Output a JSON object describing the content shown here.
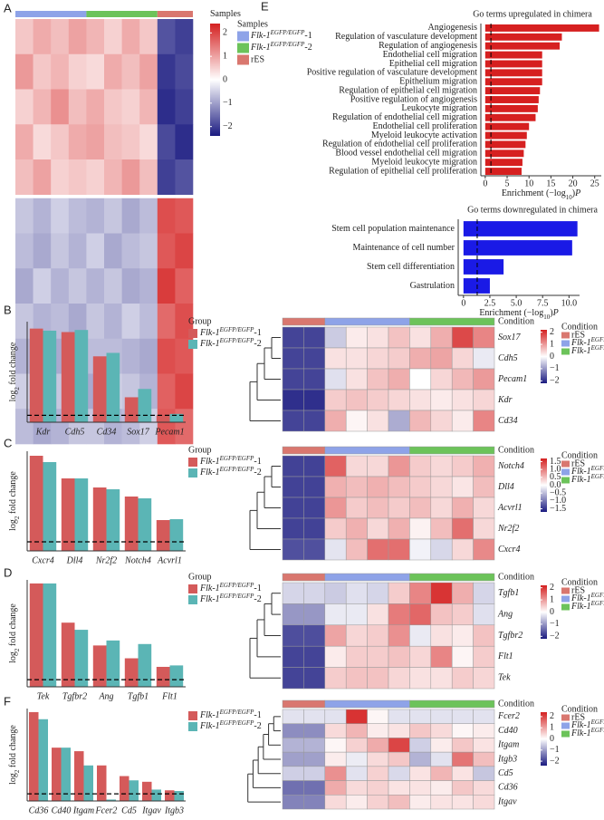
{
  "panel_labels": [
    "A",
    "B",
    "C",
    "D",
    "E",
    "F"
  ],
  "chart_data": [
    {
      "type": "heatmap",
      "annotation_title": "Samples",
      "legend_title": "Samples",
      "groups": [
        {
          "name": [
            "Flk-1",
            "EGFP/EGFP",
            "-1"
          ],
          "color": "#8ea3e8",
          "count": 4
        },
        {
          "name": [
            "Flk-1",
            "EGFP/EGFP",
            "-2"
          ],
          "color": "#6cc35a",
          "count": 4
        },
        {
          "name": "rES",
          "color": "#d9776f",
          "count": 2
        }
      ],
      "colormap": [
        "#1a1a80",
        "#ffffff",
        "#d42020"
      ],
      "zlim": [
        -2.4,
        2.4
      ],
      "zticks": [
        2,
        1,
        0,
        {
          "value": -1,
          "label": "−1"
        },
        {
          "value": -2,
          "label": "−2"
        }
      ],
      "values": [
        [
          0.6,
          0.9,
          0.7,
          1.0,
          0.8,
          0.5,
          0.9,
          0.6,
          -1.8,
          -2.0
        ],
        [
          1.1,
          0.6,
          0.8,
          0.5,
          0.4,
          0.9,
          0.7,
          1.0,
          -2.1,
          -1.9
        ],
        [
          0.5,
          0.8,
          1.2,
          0.7,
          0.9,
          0.6,
          0.5,
          0.8,
          -2.2,
          -2.0
        ],
        [
          0.9,
          0.4,
          0.6,
          0.9,
          1.0,
          0.7,
          0.6,
          0.4,
          -1.9,
          -2.2
        ],
        [
          0.7,
          1.0,
          0.5,
          0.6,
          0.5,
          0.8,
          1.1,
          0.7,
          -2.0,
          -1.8
        ],
        [
          -0.6,
          -0.8,
          -0.5,
          -0.7,
          -0.8,
          -0.6,
          -0.9,
          -0.7,
          1.9,
          1.8
        ],
        [
          -0.7,
          -0.9,
          -0.6,
          -0.8,
          -0.5,
          -0.9,
          -0.7,
          -0.6,
          1.8,
          2.0
        ],
        [
          -0.9,
          -0.5,
          -0.8,
          -0.6,
          -0.8,
          -0.6,
          -0.9,
          -0.8,
          2.1,
          1.7
        ],
        [
          -0.6,
          -0.8,
          -0.7,
          -0.9,
          -0.6,
          -0.8,
          -0.5,
          -0.7,
          1.6,
          1.9
        ],
        [
          -0.8,
          -0.6,
          -0.9,
          -0.5,
          -0.7,
          -0.7,
          -0.8,
          -0.9,
          1.9,
          1.8
        ],
        [
          -0.5,
          -0.7,
          -0.6,
          -0.7,
          -0.9,
          -0.5,
          -0.6,
          -0.8,
          1.7,
          2.0
        ],
        [
          -0.7,
          -0.9,
          -0.8,
          -0.6,
          -0.6,
          -0.8,
          -0.7,
          -0.5,
          1.8,
          1.6
        ]
      ]
    },
    {
      "type": "hbar",
      "title": "Go terms upregulated in chimera",
      "color": "#d62020",
      "categories": [
        "Angiogenesis",
        "Regulation of vasculature development",
        "Regulation of angiogenesis",
        "Endothelial cell migration",
        "Epithelial cell migration",
        "Positive regulation of vasculature development",
        "Epithelium migration",
        "Regulation of epithelial cell migration",
        "Positive regulation of angiogenesis",
        "Leukocyte migration",
        "Regulation of endothelial cell migration",
        "Endothelial cell proliferation",
        "Myeloid leukocyte activation",
        "Regulation of endothelial cell proliferation",
        "Blood vessel endothelial cell migration",
        "Myeloid leukocyte migration",
        "Regulation of epithelial cell proliferation"
      ],
      "values": [
        26,
        17.5,
        17,
        13,
        13,
        13,
        13,
        12.5,
        12.2,
        12,
        11.5,
        10,
        9.5,
        9.2,
        8.8,
        8.5,
        8.3
      ],
      "xlim": [
        -1,
        26.5
      ],
      "xticks": [
        0,
        5,
        10,
        15,
        20,
        25
      ],
      "reference_line": 1.3,
      "x_label": [
        "Enrichment (−log",
        "10",
        ")",
        "P"
      ]
    },
    {
      "type": "hbar",
      "title": "Go terms downregulated in chimera",
      "color": "#1a1ae6",
      "categories": [
        "Stem cell population maintenance",
        "Maintenance of cell number",
        "Stem cell differentiation",
        "Gastrulation"
      ],
      "values": [
        10.8,
        10.3,
        3.8,
        2.5
      ],
      "xlim": [
        -0.5,
        11
      ],
      "xticks": [
        0,
        2.5,
        {
          "value": 5,
          "label": "5.0"
        },
        7.5,
        {
          "value": 10,
          "label": "10.0"
        }
      ],
      "reference_line": 1.3,
      "x_label": [
        "Enrichment (−log",
        "10",
        ")",
        "P"
      ]
    },
    {
      "type": "bar",
      "legend_title": "Group",
      "y_label": [
        "log",
        "2",
        " fold change"
      ],
      "categories": [
        "Kdr",
        "Cdh5",
        "Cd34",
        "Sox17",
        "Pecam1"
      ],
      "ylim": [
        0,
        14.5
      ],
      "reference_line": 1,
      "series": [
        {
          "name": [
            "Flk-1",
            "EGFP/EGFP",
            "-1"
          ],
          "color": "#d45a5a",
          "values": [
            13.5,
            13,
            9.5,
            3.6,
            1.0
          ]
        },
        {
          "name": [
            "Flk-1",
            "EGFP/EGFP",
            "-2"
          ],
          "color": "#5bb5b5",
          "values": [
            13.2,
            13.3,
            10,
            4.8,
            1.2
          ]
        }
      ]
    },
    {
      "type": "heatmap",
      "annotation_title": "Condition",
      "legend_title": "Condition",
      "groups": [
        {
          "name": "rES",
          "color": "#d9776f",
          "count": 2
        },
        {
          "name": [
            "Flk-1",
            "EGFP/EGFP",
            "-1"
          ],
          "color": "#8ea3e8",
          "count": 4
        },
        {
          "name": [
            "Flk-1",
            "EGFP/EGFP",
            "-2"
          ],
          "color": "#6cc35a",
          "count": 4
        }
      ],
      "colormap": [
        "#1a1a80",
        "#ffffff",
        "#d42020"
      ],
      "zlim": [
        -2.2,
        2.2
      ],
      "zticks": [
        2,
        1,
        0,
        {
          "value": -1,
          "label": "−1"
        },
        {
          "value": -2,
          "label": "−2"
        }
      ],
      "rows": [
        "Sox17",
        "Cdh5",
        "Pecam1",
        "Kdr",
        "Cd34"
      ],
      "values": [
        [
          -1.8,
          -1.8,
          -0.5,
          0.2,
          0.3,
          0.6,
          0.3,
          0.8,
          1.8,
          1.2
        ],
        [
          -1.8,
          -1.8,
          0.3,
          0.3,
          0.4,
          0.5,
          0.8,
          0.9,
          0.4,
          -0.2
        ],
        [
          -1.8,
          -1.8,
          -0.3,
          0.3,
          0.6,
          0.8,
          0,
          0.4,
          0.7,
          1.0
        ],
        [
          -2,
          -2,
          0.5,
          0.6,
          0.5,
          0.4,
          0.3,
          0.2,
          0.3,
          0.4
        ],
        [
          -1.8,
          -1.8,
          0.8,
          0.1,
          0.3,
          -0.8,
          0.7,
          0.4,
          0.2,
          1.2
        ]
      ]
    },
    {
      "type": "bar",
      "legend_title": "Group",
      "y_label": [
        "log",
        "2",
        " fold change"
      ],
      "categories": [
        "Cxcr4",
        "Dll4",
        "Nr2f2",
        "Notch4",
        "Acvrl1"
      ],
      "ylim": [
        0,
        11
      ],
      "reference_line": 1,
      "series": [
        {
          "name": [
            "Flk-1",
            "EGFP/EGFP",
            "-1"
          ],
          "color": "#d45a5a",
          "values": [
            10.5,
            8,
            7,
            6,
            3.4
          ]
        },
        {
          "name": [
            "Flk-1",
            "EGFP/EGFP",
            "-2"
          ],
          "color": "#5bb5b5",
          "values": [
            9.8,
            8,
            6.8,
            5.8,
            3.5
          ]
        }
      ]
    },
    {
      "type": "heatmap",
      "annotation_title": "Condition",
      "legend_title": "Condition",
      "groups": [
        {
          "name": "rES",
          "color": "#d9776f",
          "count": 2
        },
        {
          "name": [
            "Flk-1",
            "EGFP/EGFP",
            "-1"
          ],
          "color": "#8ea3e8",
          "count": 4
        },
        {
          "name": [
            "Flk-1",
            "EGFP/EGFP",
            "-2"
          ],
          "color": "#6cc35a",
          "count": 4
        }
      ],
      "colormap": [
        "#1a1a80",
        "#ffffff",
        "#d42020"
      ],
      "zlim": [
        -1.7,
        1.7
      ],
      "zticks": [
        1.5,
        {
          "value": 1,
          "label": "1.0"
        },
        0.5,
        {
          "value": 0,
          "label": "0.0"
        },
        {
          "value": -0.5,
          "label": "−0.5"
        },
        {
          "value": -1,
          "label": "−1.0"
        },
        {
          "value": -1.5,
          "label": "−1.5"
        }
      ],
      "rows": [
        "Notch4",
        "Dll4",
        "Acvrl1",
        "Nr2f2",
        "Cxcr4"
      ],
      "values": [
        [
          -1.4,
          -1.4,
          1.2,
          0.3,
          0.3,
          0.8,
          0.4,
          0.3,
          0.4,
          0.6
        ],
        [
          -1.4,
          -1.4,
          0.6,
          0.5,
          0.6,
          0.5,
          0.4,
          0.3,
          0.2,
          0.5
        ],
        [
          -1.4,
          -1.4,
          0.8,
          0.4,
          0.5,
          0.4,
          0.5,
          0.3,
          0.6,
          0.3
        ],
        [
          -1.4,
          -1.4,
          0.4,
          0.6,
          0.3,
          0.6,
          0.1,
          0.5,
          1.1,
          0.3
        ],
        [
          -1.3,
          -1.3,
          -0.2,
          0.5,
          1.1,
          1.1,
          -0.1,
          -0.3,
          0.3,
          0.9
        ]
      ]
    },
    {
      "type": "bar",
      "legend_title": "Group",
      "y_label": [
        "log",
        "2",
        " fold change"
      ],
      "categories": [
        "Tek",
        "Tgfbr2",
        "Ang",
        "Tgfb1",
        "Flt1"
      ],
      "ylim": [
        0,
        15
      ],
      "reference_line": 1,
      "series": [
        {
          "name": [
            "Flk-1",
            "EGFP/EGFP",
            "-1"
          ],
          "color": "#d45a5a",
          "values": [
            14.5,
            9,
            5.8,
            4,
            2.8
          ]
        },
        {
          "name": [
            "Flk-1",
            "EGFP/EGFP",
            "-2"
          ],
          "color": "#5bb5b5",
          "values": [
            14.5,
            8,
            6.5,
            6,
            3
          ]
        }
      ]
    },
    {
      "type": "heatmap",
      "annotation_title": "Condition",
      "legend_title": "Condition",
      "groups": [
        {
          "name": "rES",
          "color": "#d9776f",
          "count": 2
        },
        {
          "name": [
            "Flk-1",
            "EGFP/EGFP",
            "-1"
          ],
          "color": "#8ea3e8",
          "count": 4
        },
        {
          "name": [
            "Flk-1",
            "EGFP/EGFP",
            "-2"
          ],
          "color": "#6cc35a",
          "count": 4
        }
      ],
      "colormap": [
        "#1a1a80",
        "#ffffff",
        "#d42020"
      ],
      "zlim": [
        -2.2,
        2.2
      ],
      "zticks": [
        2,
        1,
        0,
        {
          "value": -1,
          "label": "−1"
        },
        {
          "value": -2,
          "label": "−2"
        }
      ],
      "rows": [
        "Tgfb1",
        "Ang",
        "Tgfbr2",
        "Flt1",
        "Tek"
      ],
      "values": [
        [
          -0.4,
          -0.4,
          -0.5,
          -0.3,
          -0.4,
          0.5,
          1.2,
          2,
          0.8,
          -0.4
        ],
        [
          -1,
          -1,
          -0.2,
          -0.2,
          0.3,
          1.3,
          1.5,
          0.6,
          0.5,
          -0.3
        ],
        [
          -1.7,
          -1.7,
          0.9,
          0.4,
          0.5,
          1.1,
          -0.2,
          0.3,
          0.2,
          0.6
        ],
        [
          -1.8,
          -1.8,
          0.2,
          0.5,
          0.5,
          0.6,
          0.4,
          1.2,
          0.1,
          0.5
        ],
        [
          -1.8,
          -1.8,
          0.5,
          0.6,
          0.6,
          0.4,
          0.3,
          0.3,
          0.5,
          0.4
        ]
      ]
    },
    {
      "type": "bar",
      "y_label": [
        "log",
        "2",
        " fold change"
      ],
      "categories": [
        "Cd36",
        "Cd40",
        "Itgam",
        "Fcer2",
        "Cd5",
        "Itgav",
        "Itgb3"
      ],
      "ylim": [
        0,
        13
      ],
      "reference_line": 1,
      "series": [
        {
          "name": [
            "Flk-1",
            "EGFP/EGFP",
            "-1"
          ],
          "color": "#d45a5a",
          "values": [
            12.5,
            7.5,
            7,
            5,
            3.5,
            2.7,
            1.5
          ]
        },
        {
          "name": [
            "Flk-1",
            "EGFP/EGFP",
            "-2"
          ],
          "color": "#5bb5b5",
          "values": [
            11.5,
            7.5,
            5,
            0.2,
            2.9,
            1.6,
            1.4
          ]
        }
      ]
    },
    {
      "type": "heatmap",
      "annotation_title": "Condition",
      "legend_title": "Condition",
      "groups": [
        {
          "name": "rES",
          "color": "#d9776f",
          "count": 2
        },
        {
          "name": [
            "Flk-1",
            "EGFP/EGFP",
            "-1"
          ],
          "color": "#8ea3e8",
          "count": 4
        },
        {
          "name": [
            "Flk-1",
            "EGFP/EGFP",
            "-2"
          ],
          "color": "#6cc35a",
          "count": 4
        }
      ],
      "colormap": [
        "#1a1a80",
        "#ffffff",
        "#d42020"
      ],
      "zlim": [
        -2.4,
        2.4
      ],
      "zticks": [
        2,
        1,
        0,
        {
          "value": -1,
          "label": "−1"
        },
        {
          "value": -2,
          "label": "−2"
        }
      ],
      "rows": [
        "Fcer2",
        "Cd40",
        "Itgam",
        "Itgb3",
        "Cd5",
        "Cd36",
        "Itgav"
      ],
      "values": [
        [
          -0.3,
          -0.3,
          -0.3,
          2.2,
          0.1,
          -0.3,
          -0.3,
          -0.3,
          -0.3,
          -0.3
        ],
        [
          -1.2,
          -1.2,
          0.4,
          0.8,
          0.2,
          0.3,
          0.6,
          0.4,
          0.1,
          0.2
        ],
        [
          -0.8,
          -0.8,
          0.1,
          0.5,
          0.9,
          2.0,
          -0.5,
          0.2,
          0.6,
          0.3
        ],
        [
          -1,
          -1,
          0.2,
          -0.2,
          0.4,
          0.6,
          -0.8,
          -0.3,
          1.5,
          0.7
        ],
        [
          -0.5,
          -0.5,
          1.2,
          -0.3,
          0.5,
          -0.4,
          0.3,
          0.8,
          0.3,
          -0.6
        ],
        [
          -1.5,
          -1.5,
          0.9,
          0.4,
          0.5,
          0.3,
          0.3,
          0.2,
          0.6,
          0.4
        ],
        [
          -1.3,
          -1.3,
          0.4,
          0.2,
          0.5,
          0.7,
          0.2,
          0.3,
          0.3,
          0.4
        ]
      ]
    }
  ]
}
